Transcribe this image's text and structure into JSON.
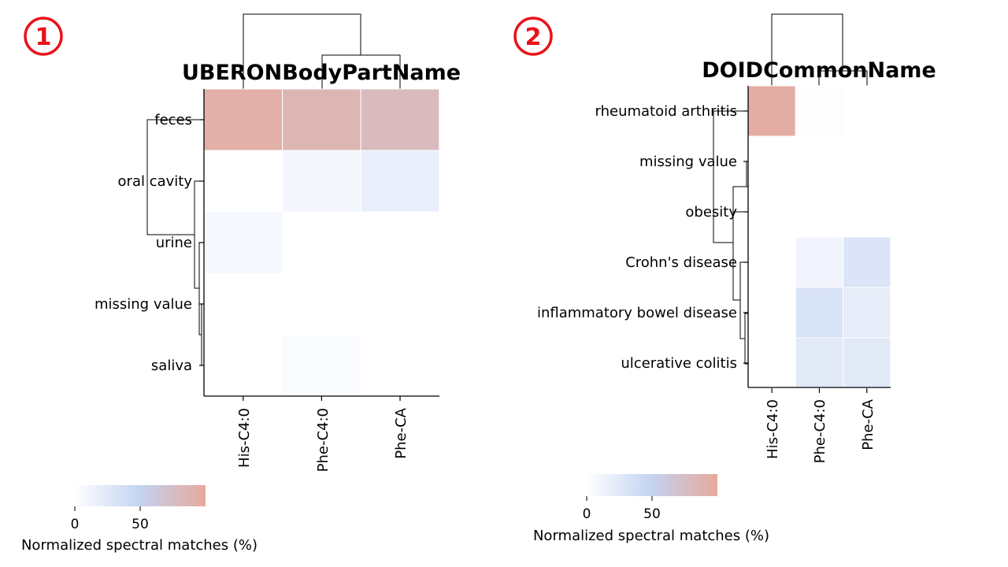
{
  "panels": [
    {
      "badge": "1"
    },
    {
      "badge": "2"
    }
  ],
  "colorscale": {
    "stops": [
      "#ffffff",
      "#c3d3f1",
      "#e8a99a"
    ],
    "ticks": [
      "0",
      "50"
    ],
    "label": "Normalized spectral matches (%)"
  },
  "chart_data": [
    {
      "type": "heatmap",
      "title": "UBERONBodyPartName",
      "rows": [
        "feces",
        "oral cavity",
        "urine",
        "missing value",
        "saliva"
      ],
      "columns": [
        "His-C4:0",
        "Phe-C4:0",
        "Phe-CA"
      ],
      "values": [
        [
          92,
          85,
          80
        ],
        [
          0,
          10,
          18
        ],
        [
          8,
          0,
          0
        ],
        [
          0,
          0,
          0
        ],
        [
          0,
          4,
          0
        ]
      ],
      "colorbar": {
        "min": 0,
        "max": 100,
        "ticks": [
          "0",
          "50"
        ],
        "label": "Normalized spectral matches (%)"
      },
      "row_dendrogram": true,
      "column_dendrogram": true
    },
    {
      "type": "heatmap",
      "title": "DOIDCommonName",
      "rows": [
        "rheumatoid arthritis",
        "missing value",
        "obesity",
        "Crohn's disease",
        "inflammatory bowel disease",
        "ulcerative colitis"
      ],
      "columns": [
        "His-C4:0",
        "Phe-C4:0",
        "Phe-CA"
      ],
      "values": [
        [
          95,
          2,
          0
        ],
        [
          0,
          0,
          0
        ],
        [
          0,
          0,
          0
        ],
        [
          0,
          12,
          30
        ],
        [
          0,
          32,
          20
        ],
        [
          0,
          24,
          24
        ]
      ],
      "colorbar": {
        "min": 0,
        "max": 100,
        "ticks": [
          "0",
          "50"
        ],
        "label": "Normalized spectral matches (%)"
      },
      "row_dendrogram": true,
      "column_dendrogram": true
    }
  ]
}
